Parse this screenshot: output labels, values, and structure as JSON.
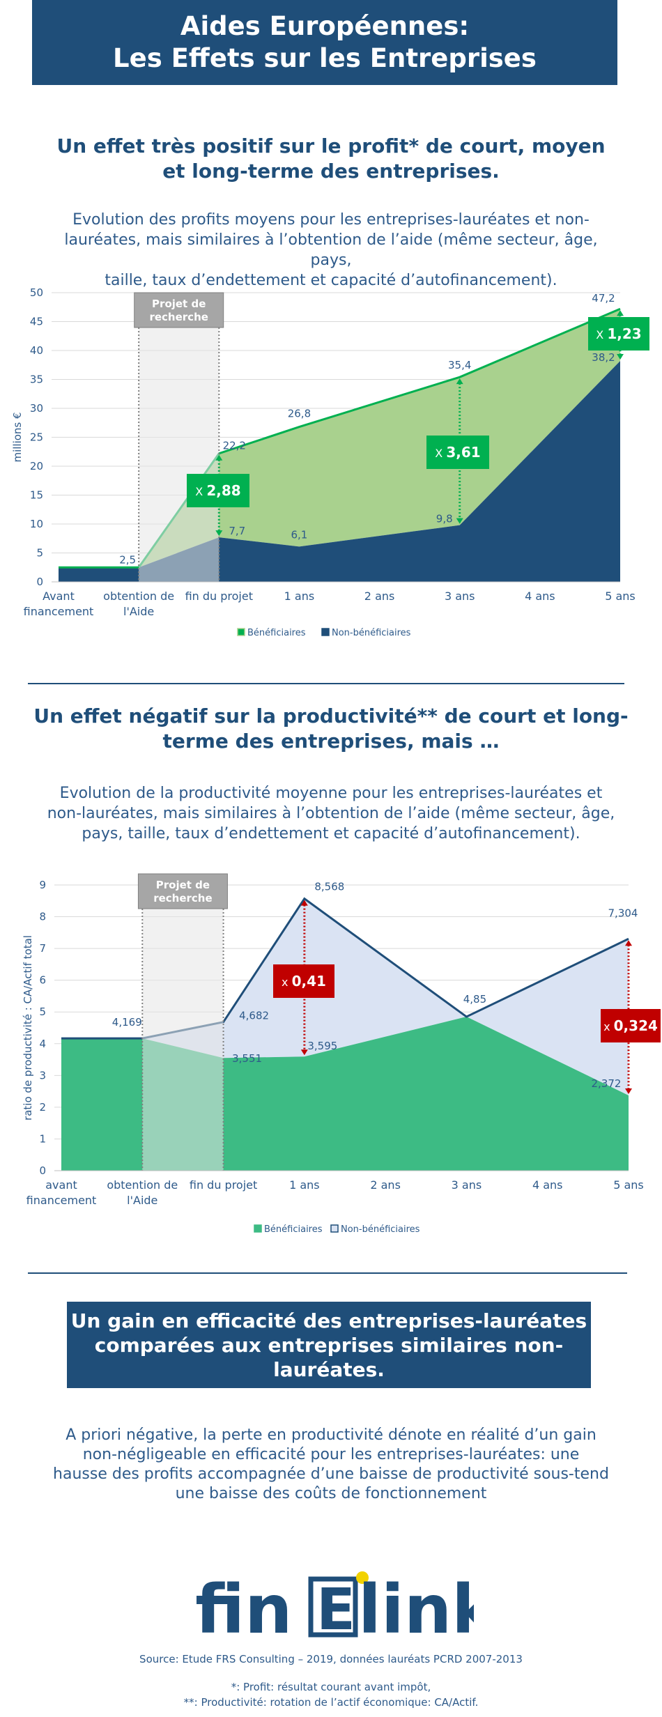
{
  "banner": {
    "line1": "Aides Européennes:",
    "line2": "Les Effets sur les Entreprises"
  },
  "section1": {
    "title_line1": "Un effet très positif sur le profit* de court, moyen",
    "title_line2": "et long-terme des entreprises.",
    "subtitle_line1": "Evolution des profits moyens pour les entreprises-lauréates  et non-",
    "subtitle_line2": "lauréates, mais similaires à l’obtention de l’aide (même secteur, âge, pays,",
    "subtitle_line3": "taille, taux d’endettement et capacité d’autofinancement)."
  },
  "section2": {
    "title_line1": "Un effet négatif sur la productivité** de court et long-",
    "title_line2": "terme des entreprises, mais …",
    "subtitle_line1": "Evolution de la productivité moyenne pour les entreprises-lauréates et",
    "subtitle_line2": "non-lauréates, mais similaires à l’obtention de l’aide (même secteur, âge,",
    "subtitle_line3": "pays, taille, taux d’endettement et capacité d’autofinancement)."
  },
  "section3": {
    "title_line1": "Un gain en efficacité des entreprises-lauréates",
    "title_line2": "comparées aux entreprises similaires non-",
    "title_line3": "lauréates.",
    "para_line1": "A priori  négative, la perte en productivité dénote  en réalité d’un gain",
    "para_line2": "non-négligeable  en efficacité  pour les entreprises-lauréates:  une",
    "para_line3": "hausse des profits accompagnée d’une baisse de productivité sous-tend",
    "para_line4": "une baisse des coûts de fonctionnement"
  },
  "logo": {
    "part1": "fin",
    "part2": "E",
    "part3": "link"
  },
  "footer": {
    "source": "Source: Etude FRS Consulting – 2019, données lauréats PCRD 2007-2013",
    "note1": "*: Profit: résultat courant avant impôt,",
    "note2": "**: Productivité: rotation de l’actif économique: CA/Actif."
  },
  "colors": {
    "navy": "#1f4e79",
    "green": "#00b050",
    "light_green": "#a9d18e",
    "chart2_green": "#3dbb84",
    "chart2_light": "#dae3f3",
    "multiplier_red": "#c00000",
    "grey_box": "#a6a6a6"
  },
  "chart_data": [
    {
      "type": "area",
      "categories": [
        "Avant financement",
        "obtention de l'Aide",
        "fin du projet",
        "1 ans",
        "2 ans",
        "3 ans",
        "4 ans",
        "5 ans"
      ],
      "ylabel": "millions €",
      "ylim": [
        0,
        50
      ],
      "yticks": [
        0,
        5,
        10,
        15,
        20,
        25,
        30,
        35,
        40,
        45,
        50
      ],
      "grid": true,
      "legend_position": "bottom",
      "shaded_period_label_line1": "Projet de",
      "shaded_period_label_line2": "recherche",
      "series": [
        {
          "name": "Bénéficiaires",
          "points": [
            [
              0,
              2.5
            ],
            [
              1,
              2.5
            ],
            [
              2,
              22.2
            ],
            [
              3,
              26.8
            ],
            [
              5,
              35.4
            ],
            [
              7,
              47.2
            ]
          ],
          "labels": [
            {
              "i": 2,
              "v": "22,2"
            },
            {
              "i": 3,
              "v": "26,8"
            },
            {
              "i": 5,
              "v": "35,4"
            },
            {
              "i": 7,
              "v": "47,2"
            }
          ]
        },
        {
          "name": "Non-bénéficiaires",
          "points": [
            [
              0,
              2.5
            ],
            [
              1,
              2.5
            ],
            [
              2,
              7.7
            ],
            [
              3,
              6.1
            ],
            [
              5,
              9.8
            ],
            [
              7,
              38.2
            ]
          ],
          "labels": [
            {
              "i": 1,
              "v": "2,5"
            },
            {
              "i": 2,
              "v": "7,7"
            },
            {
              "i": 3,
              "v": "6,1"
            },
            {
              "i": 5,
              "v": "9,8"
            },
            {
              "i": 7,
              "v": "38,2"
            }
          ]
        }
      ],
      "multipliers": [
        {
          "prefix": "X",
          "value": "2,88",
          "at": 2
        },
        {
          "prefix": "X",
          "value": "3,61",
          "at": 5
        },
        {
          "prefix": "X",
          "value": "1,23",
          "at": 7
        }
      ]
    },
    {
      "type": "area",
      "categories": [
        "avant financement",
        "obtention de l'Aide",
        "fin du projet",
        "1 ans",
        "2 ans",
        "3 ans",
        "4 ans",
        "5 ans"
      ],
      "ylabel": "ratio de productivité : CA/Actif total",
      "ylim": [
        0,
        9
      ],
      "yticks": [
        0,
        1,
        2,
        3,
        4,
        5,
        6,
        7,
        8,
        9
      ],
      "grid": true,
      "legend_position": "bottom",
      "shaded_period_label_line1": "Projet de",
      "shaded_period_label_line2": "recherche",
      "series": [
        {
          "name": "Bénéficiaires",
          "points": [
            [
              0,
              4.169
            ],
            [
              1,
              4.169
            ],
            [
              2,
              3.551
            ],
            [
              3,
              3.595
            ],
            [
              5,
              4.85
            ],
            [
              7,
              2.372
            ]
          ],
          "labels": [
            {
              "i": 2,
              "v": "3,551"
            },
            {
              "i": 3,
              "v": "3,595"
            },
            {
              "i": 7,
              "v": "2,372"
            }
          ]
        },
        {
          "name": "Non-bénéficiaires",
          "points": [
            [
              0,
              4.169
            ],
            [
              1,
              4.169
            ],
            [
              2,
              4.682
            ],
            [
              3,
              8.568
            ],
            [
              5,
              4.85
            ],
            [
              7,
              7.304
            ]
          ],
          "labels": [
            {
              "i": 1,
              "v": "4,169"
            },
            {
              "i": 2,
              "v": "4,682"
            },
            {
              "i": 3,
              "v": "8,568"
            },
            {
              "i": 5,
              "v": "4,85"
            },
            {
              "i": 7,
              "v": "7,304"
            }
          ]
        }
      ],
      "multipliers": [
        {
          "prefix": "x",
          "value": "0,41",
          "at": 3
        },
        {
          "prefix": "x",
          "value": "0,324",
          "at": 7
        }
      ]
    }
  ]
}
